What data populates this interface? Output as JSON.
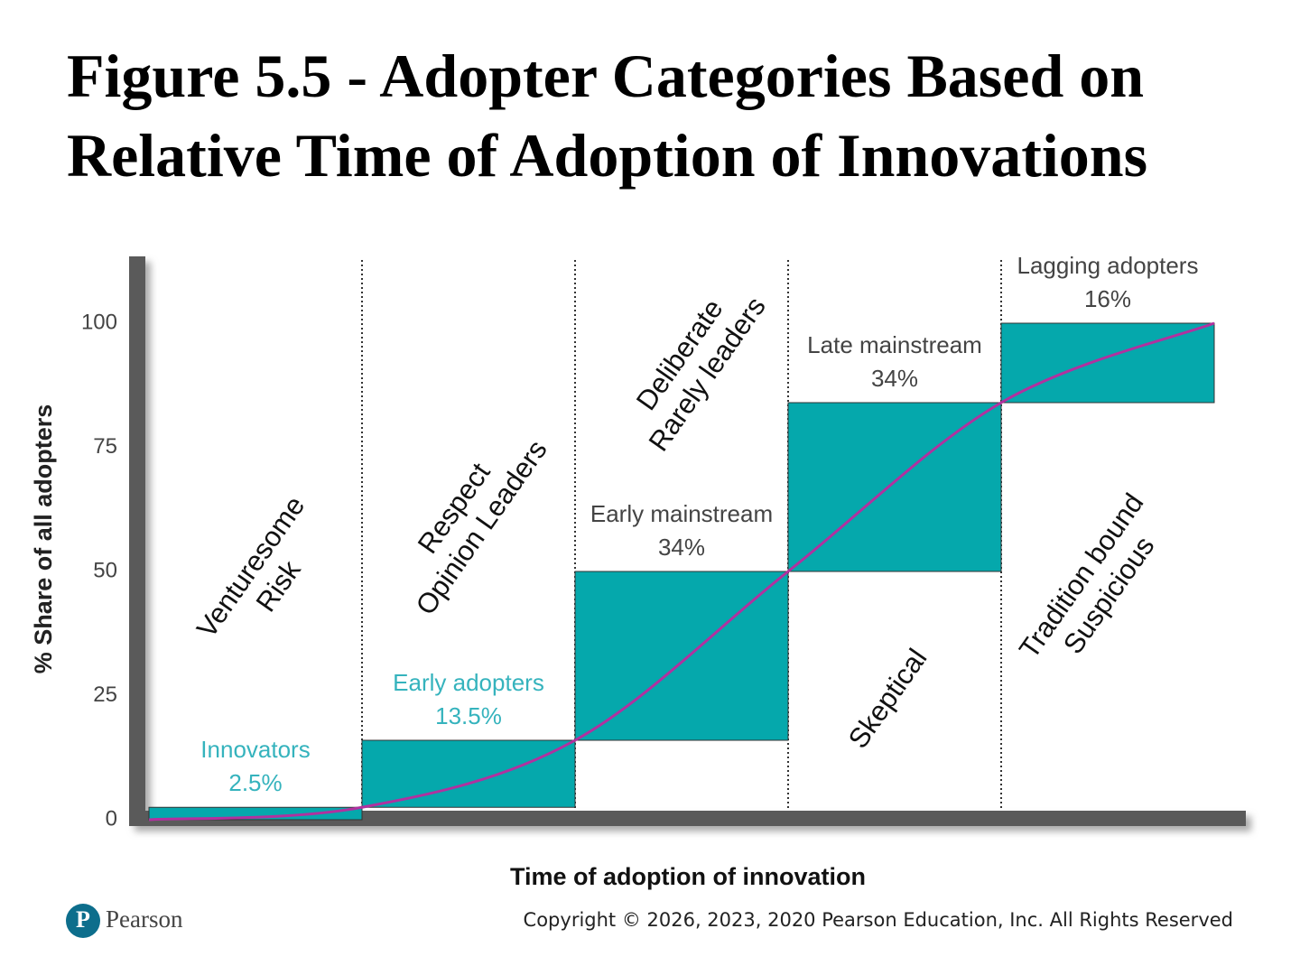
{
  "chart_data": {
    "type": "waterfall",
    "title": "Figure 5.5 - Adopter Categories Based on\nRelative Time of Adoption of Innovations",
    "ylabel": "% Share of all adopters",
    "xlabel": "Time of adoption of innovation",
    "categories": [
      "Innovators",
      "Early adopters",
      "Early mainstream",
      "Late mainstream",
      "Lagging adopters"
    ],
    "values": [
      2.5,
      13.5,
      34,
      34,
      16
    ],
    "value_labels": [
      "2.5%",
      "13.5%",
      "34%",
      "34%",
      "16%"
    ],
    "label_colors": [
      "#35b3bd",
      "#35b3bd",
      "#444444",
      "#444444",
      "#444444"
    ],
    "traits": [
      "Venturesome\nRisk",
      "Respect\nOpinion Leaders",
      "Deliberate\nRarely leaders",
      "Skeptical",
      "Tradition bound\nSuspicious"
    ],
    "color": "#05a8ac",
    "curve_color": "#b1319f",
    "ylim": [
      0,
      113
    ],
    "yticks": [
      0,
      25,
      50,
      75,
      100
    ],
    "grid": false,
    "logo": "Pearson",
    "copyright": "Copyright © 2026, 2023, 2020 Pearson Education, Inc. All Rights Reserved"
  }
}
